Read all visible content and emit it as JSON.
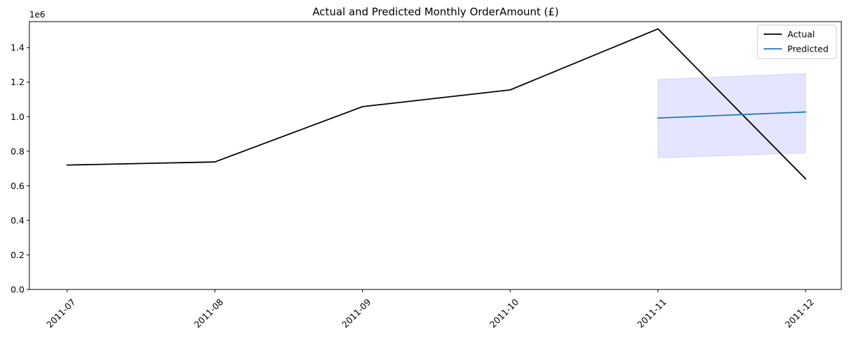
{
  "chart_data": {
    "type": "line",
    "title": "Actual and Predicted Monthly OrderAmount (£)",
    "xlabel": "",
    "ylabel": "",
    "y_offset_label": "1e6",
    "categories": [
      "2011-07",
      "2011-08",
      "2011-09",
      "2011-10",
      "2011-11",
      "2011-12"
    ],
    "ylim": [
      0,
      1.55
    ],
    "yticks": [
      0.0,
      0.2,
      0.4,
      0.6,
      0.8,
      1.0,
      1.2,
      1.4
    ],
    "ytick_labels": [
      "0.0",
      "0.2",
      "0.4",
      "0.6",
      "0.8",
      "1.0",
      "1.2",
      "1.4"
    ],
    "series": [
      {
        "name": "Actual",
        "color": "#000000",
        "x": [
          "2011-07",
          "2011-08",
          "2011-09",
          "2011-10",
          "2011-11",
          "2011-12"
        ],
        "values": [
          0.72,
          0.738,
          1.058,
          1.155,
          1.508,
          0.64
        ]
      },
      {
        "name": "Predicted",
        "color": "#1f77b4",
        "x": [
          "2011-11",
          "2011-12"
        ],
        "values": [
          0.992,
          1.027
        ],
        "lower": [
          0.762,
          0.79
        ],
        "upper": [
          1.215,
          1.25
        ],
        "band_color": "#0000ff"
      }
    ],
    "legend": {
      "position": "top-right",
      "entries": [
        "Actual",
        "Predicted"
      ]
    },
    "grid": false
  }
}
